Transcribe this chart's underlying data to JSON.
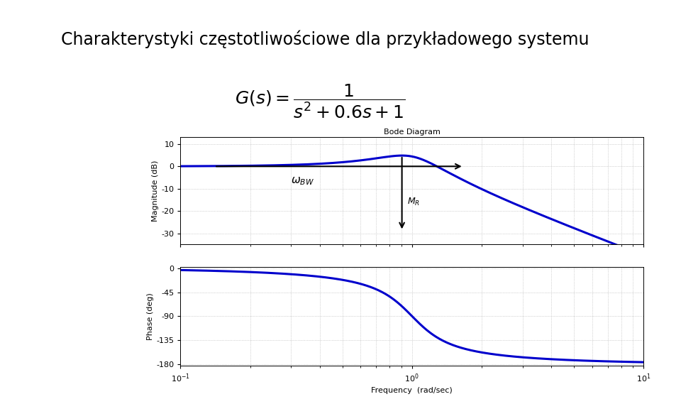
{
  "title": "Charakterystyki częstotliwościowe dla przykładowego systemu",
  "bode_title": "Bode Diagram",
  "freq_label": "Frequency  (rad/sec)",
  "mag_label": "Magnitude (dB)",
  "phase_label": "Phase (deg)",
  "line_color": "#0000cc",
  "line_width": 2.2,
  "omega_n": 1.0,
  "zeta": 0.3,
  "freq_min": 0.1,
  "freq_max": 10.0,
  "mag_ylim": [
    -35,
    13
  ],
  "mag_yticks": [
    10,
    0,
    -10,
    -20,
    -30
  ],
  "phase_ylim": [
    -183,
    3
  ],
  "phase_yticks": [
    0,
    -45,
    -90,
    -135,
    -180
  ],
  "background_color": "#ffffff",
  "grid_color": "#b0b0b0",
  "top_bar_color": "#3dae6e",
  "title_fontsize": 17,
  "formula_fontsize": 18
}
